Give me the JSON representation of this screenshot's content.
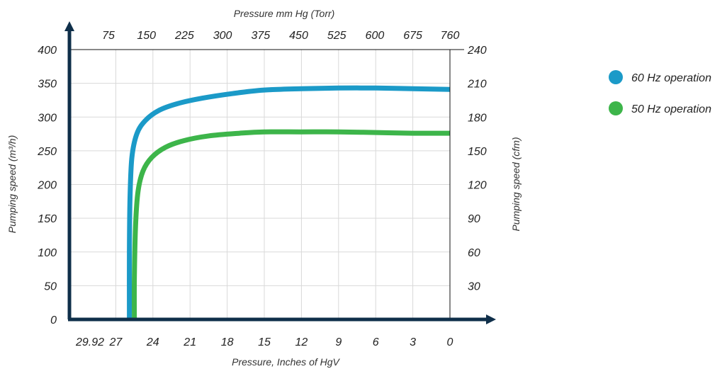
{
  "colors": {
    "series_60hz": "#1b9ac8",
    "series_50hz": "#3db54a",
    "axis": "#0f2f4a",
    "grid": "#d9d9d9"
  },
  "chart_data": {
    "type": "line",
    "title": "",
    "xlabel_bottom": "Pressure, Inches of HgV",
    "xlabel_top": "Pressure mm Hg (Torr)",
    "ylabel_left": "Pumping speed (m³/h)",
    "ylabel_right": "Pumping speed (cfm)",
    "x_ticks_bottom": [
      "29.92",
      "27",
      "24",
      "21",
      "18",
      "15",
      "12",
      "9",
      "6",
      "3",
      "0"
    ],
    "x_ticks_top": [
      "75",
      "150",
      "225",
      "300",
      "375",
      "450",
      "525",
      "600",
      "675",
      "760"
    ],
    "y_ticks_left": [
      "0",
      "50",
      "100",
      "150",
      "200",
      "250",
      "300",
      "350",
      "400"
    ],
    "y_ticks_right": [
      "30",
      "60",
      "90",
      "120",
      "150",
      "180",
      "210",
      "240"
    ],
    "xlim_inches_hgv": [
      29.92,
      0
    ],
    "ylim_m3h": [
      0,
      400
    ],
    "grid": true,
    "legend_position": "right",
    "series": [
      {
        "name": "60 Hz operation",
        "color": "#1b9ac8",
        "x": [
          25.9,
          25.9,
          25.85,
          25.7,
          25.3,
          24.6,
          23.5,
          22,
          20,
          17.5,
          15,
          12,
          9,
          6,
          3,
          0
        ],
        "y": [
          0,
          100,
          180,
          240,
          275,
          295,
          310,
          320,
          328,
          335,
          340,
          342,
          343,
          343,
          342,
          341
        ]
      },
      {
        "name": "50 Hz operation",
        "color": "#3db54a",
        "x": [
          25.5,
          25.5,
          25.4,
          25.2,
          24.8,
          24.1,
          23,
          21.5,
          19.5,
          17,
          15,
          12,
          9,
          6,
          3,
          0
        ],
        "y": [
          0,
          60,
          140,
          190,
          220,
          240,
          255,
          265,
          272,
          276,
          278,
          278,
          278,
          277,
          276,
          276
        ]
      }
    ]
  }
}
